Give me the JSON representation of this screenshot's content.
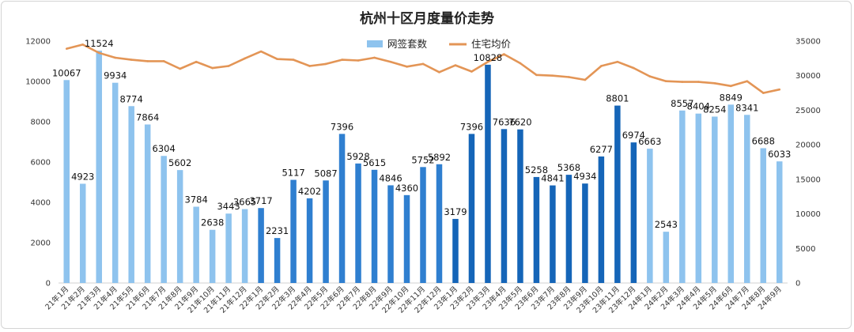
{
  "chart_data": {
    "type": "bar",
    "title": "杭州十区月度量价走势",
    "categories": [
      "21年1月",
      "21年2月",
      "21年3月",
      "21年4月",
      "21年5月",
      "21年6月",
      "21年7月",
      "21年8月",
      "21年9月",
      "21年10月",
      "21年11月",
      "21年12月",
      "22年1月",
      "22年2月",
      "22年3月",
      "22年4月",
      "22年5月",
      "22年6月",
      "22年7月",
      "22年8月",
      "22年9月",
      "22年10月",
      "22年11月",
      "22年12月",
      "23年1月",
      "23年2月",
      "23年3月",
      "23年4月",
      "23年5月",
      "23年6月",
      "23年7月",
      "23年8月",
      "23年9月",
      "23年10月",
      "23年11月",
      "23年12月",
      "24年1月",
      "24年2月",
      "24年3月",
      "24年4月",
      "24年5月",
      "24年6月",
      "24年7月",
      "24年8月",
      "24年9月"
    ],
    "series": [
      {
        "name": "网签套数",
        "type": "bar",
        "axis": "left",
        "values": [
          10067,
          4923,
          11524,
          9934,
          8774,
          7864,
          6304,
          5602,
          3784,
          2638,
          3443,
          3665,
          3717,
          2231,
          5117,
          4202,
          5087,
          7396,
          5928,
          5615,
          4846,
          4360,
          5752,
          5892,
          3179,
          7396,
          10828,
          7636,
          7620,
          5258,
          4841,
          5368,
          4934,
          6277,
          8801,
          6974,
          6663,
          2543,
          8557,
          8404,
          8254,
          8849,
          8341,
          6688,
          6033
        ]
      },
      {
        "name": "住宅均价",
        "type": "line",
        "axis": "right",
        "values": [
          33900,
          34500,
          33300,
          32600,
          32300,
          32100,
          32100,
          31000,
          32000,
          31100,
          31400,
          32500,
          33500,
          32400,
          32300,
          31400,
          31700,
          32300,
          32200,
          32600,
          32000,
          31300,
          31700,
          30500,
          31500,
          30600,
          32000,
          33100,
          31800,
          30100,
          30000,
          29800,
          29400,
          31400,
          32000,
          31100,
          29900,
          29200,
          29100,
          29100,
          28900,
          28500,
          29200,
          27500,
          28000
        ]
      }
    ],
    "ylim_left": [
      0,
      12000
    ],
    "yticks_left": [
      0,
      2000,
      4000,
      6000,
      8000,
      10000,
      12000
    ],
    "ylim_right": [
      0,
      35000
    ],
    "yticks_right": [
      0,
      5000,
      10000,
      15000,
      20000,
      25000,
      30000,
      35000
    ],
    "legend_position": "top-center",
    "grid": false,
    "colors": {
      "light_bar": "#8ec3ee",
      "mid_bar": "#2f7fd0",
      "dark_bar": "#1565b8",
      "line": "#e39556"
    },
    "bar_color_groups": [
      "light",
      "light",
      "light",
      "light",
      "light",
      "light",
      "light",
      "light",
      "light",
      "light",
      "light",
      "light",
      "mid",
      "mid",
      "mid",
      "mid",
      "mid",
      "mid",
      "mid",
      "mid",
      "mid",
      "mid",
      "mid",
      "mid",
      "dark",
      "dark",
      "dark",
      "dark",
      "dark",
      "dark",
      "dark",
      "dark",
      "dark",
      "dark",
      "dark",
      "dark",
      "light",
      "light",
      "light",
      "light",
      "light",
      "light",
      "light",
      "light",
      "light"
    ]
  }
}
